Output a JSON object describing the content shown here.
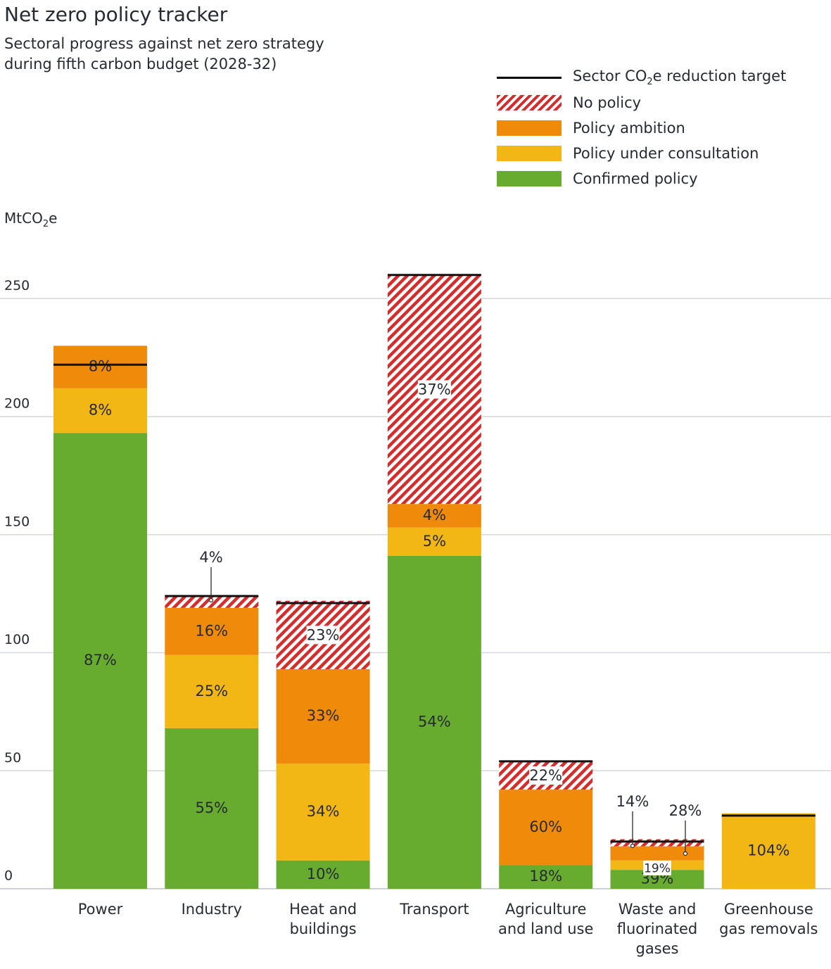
{
  "chart_data": {
    "type": "bar",
    "stacked": true,
    "title": "Net zero policy tracker",
    "subtitle_lines": [
      "Sectoral progress against net zero strategy",
      "during fifth carbon budget (2028-32)"
    ],
    "ylabel_prefix": "MtCO",
    "ylabel_sub": "2",
    "ylabel_suffix": "e",
    "ylim": [
      0,
      250
    ],
    "yticks": [
      "0",
      "50",
      "100",
      "150",
      "200",
      "250"
    ],
    "grid": true,
    "legend": [
      {
        "key": "target",
        "label_prefix": "Sector CO",
        "label_sub": "2",
        "label_suffix": "e reduction target"
      },
      {
        "key": "no_policy",
        "label": "No policy",
        "color": "#d62c2c"
      },
      {
        "key": "ambition",
        "label": "Policy ambition",
        "color": "#f08a0b"
      },
      {
        "key": "consultation",
        "label": "Policy under consultation",
        "color": "#f2b714"
      },
      {
        "key": "confirmed",
        "label": "Confirmed policy",
        "color": "#67ab2f"
      }
    ],
    "categories": [
      "Power",
      "Industry",
      "Heat and buildings",
      "Transport",
      "Agriculture and land use",
      "Waste and fluorinated gases",
      "Greenhouse gas removals"
    ],
    "category_lines": [
      [
        "Power"
      ],
      [
        "Industry"
      ],
      [
        "Heat and",
        "buildings"
      ],
      [
        "Transport"
      ],
      [
        "Agriculture",
        "and land use"
      ],
      [
        "Waste and",
        "fluorinated",
        "gases"
      ],
      [
        "Greenhouse",
        "gas removals"
      ]
    ],
    "series": [
      {
        "name": "Confirmed policy",
        "key": "confirmed",
        "values": [
          193,
          68,
          12,
          141,
          10,
          8,
          0
        ],
        "labels": [
          "87%",
          "55%",
          "10%",
          "54%",
          "18%",
          "39%",
          ""
        ]
      },
      {
        "name": "Policy under consultation",
        "key": "consultation",
        "values": [
          19,
          31,
          41,
          12,
          0,
          4,
          32
        ],
        "labels": [
          "8%",
          "25%",
          "34%",
          "5%",
          "",
          "19%",
          "104%"
        ]
      },
      {
        "name": "Policy ambition",
        "key": "ambition",
        "values": [
          18,
          20,
          40,
          10,
          32,
          6,
          0
        ],
        "labels": [
          "8%",
          "16%",
          "33%",
          "4%",
          "60%",
          "",
          ""
        ]
      },
      {
        "name": "No policy",
        "key": "no_policy",
        "values": [
          0,
          5,
          29,
          97,
          12,
          3,
          0
        ],
        "labels": [
          "",
          "",
          "23%",
          "37%",
          "22%",
          "",
          ""
        ]
      }
    ],
    "targets": [
      222,
      124,
      121,
      260,
      54,
      20,
      31
    ],
    "callouts": [
      {
        "category": "Industry",
        "label": "4%"
      },
      {
        "category": "Waste and fluorinated gases",
        "label": "14%"
      },
      {
        "category": "Waste and fluorinated gases",
        "label": "28%"
      }
    ]
  }
}
